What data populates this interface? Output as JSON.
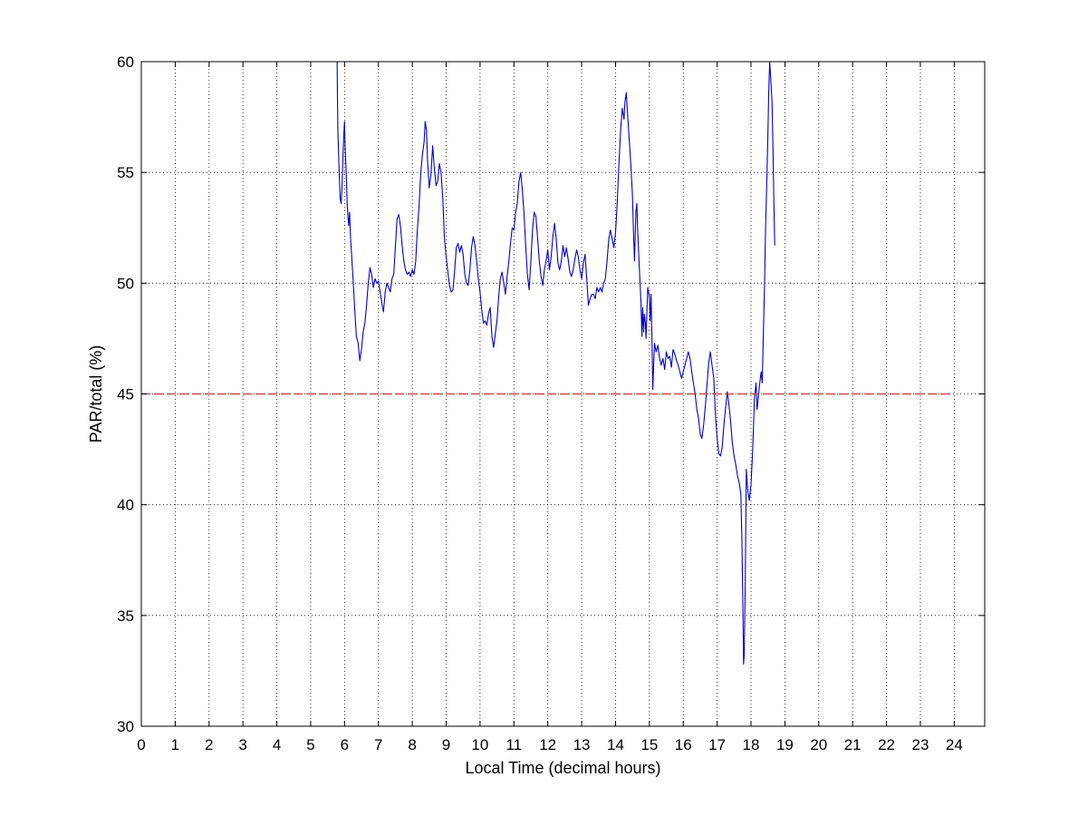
{
  "chart_data": {
    "type": "line",
    "title": "",
    "xlabel": "Local Time (decimal hours)",
    "ylabel": "PAR/total (%)",
    "xlim": [
      0,
      24.9
    ],
    "ylim": [
      30,
      60
    ],
    "x_ticks": [
      0,
      1,
      2,
      3,
      4,
      5,
      6,
      7,
      8,
      9,
      10,
      11,
      12,
      13,
      14,
      15,
      16,
      17,
      18,
      19,
      20,
      21,
      22,
      23,
      24
    ],
    "y_ticks": [
      30,
      35,
      40,
      45,
      50,
      55,
      60
    ],
    "grid": true,
    "grid_style": "dotted",
    "legend": "none",
    "series": [
      {
        "color": "#0000cc",
        "style": "solid",
        "points": [
          [
            5.78,
            60.0
          ],
          [
            5.8,
            57.0
          ],
          [
            5.83,
            55.5
          ],
          [
            5.87,
            53.8
          ],
          [
            5.9,
            53.6
          ],
          [
            5.93,
            54.5
          ],
          [
            5.95,
            55.6
          ],
          [
            5.98,
            56.8
          ],
          [
            6.0,
            57.3
          ],
          [
            6.02,
            56.0
          ],
          [
            6.05,
            55.0
          ],
          [
            6.08,
            53.5
          ],
          [
            6.12,
            52.6
          ],
          [
            6.15,
            53.2
          ],
          [
            6.18,
            51.9
          ],
          [
            6.2,
            51.5
          ],
          [
            6.25,
            50.2
          ],
          [
            6.3,
            48.8
          ],
          [
            6.35,
            47.6
          ],
          [
            6.4,
            47.3
          ],
          [
            6.45,
            46.5
          ],
          [
            6.5,
            47.0
          ],
          [
            6.55,
            47.8
          ],
          [
            6.6,
            48.2
          ],
          [
            6.65,
            49.0
          ],
          [
            6.7,
            50.0
          ],
          [
            6.75,
            50.7
          ],
          [
            6.8,
            50.4
          ],
          [
            6.85,
            49.8
          ],
          [
            6.9,
            50.2
          ],
          [
            6.95,
            50.0
          ],
          [
            7.0,
            50.1
          ],
          [
            7.05,
            49.6
          ],
          [
            7.1,
            49.1
          ],
          [
            7.15,
            48.7
          ],
          [
            7.2,
            49.6
          ],
          [
            7.25,
            50.0
          ],
          [
            7.3,
            49.8
          ],
          [
            7.35,
            49.6
          ],
          [
            7.4,
            50.2
          ],
          [
            7.45,
            50.4
          ],
          [
            7.5,
            51.6
          ],
          [
            7.55,
            52.9
          ],
          [
            7.6,
            53.1
          ],
          [
            7.65,
            52.6
          ],
          [
            7.7,
            51.7
          ],
          [
            7.75,
            51.0
          ],
          [
            7.8,
            50.6
          ],
          [
            7.85,
            50.4
          ],
          [
            7.9,
            50.5
          ],
          [
            7.95,
            50.3
          ],
          [
            8.0,
            50.6
          ],
          [
            8.05,
            50.4
          ],
          [
            8.1,
            51.0
          ],
          [
            8.15,
            52.4
          ],
          [
            8.2,
            53.5
          ],
          [
            8.25,
            55.0
          ],
          [
            8.3,
            55.8
          ],
          [
            8.35,
            56.4
          ],
          [
            8.38,
            57.3
          ],
          [
            8.42,
            56.9
          ],
          [
            8.45,
            55.6
          ],
          [
            8.5,
            54.3
          ],
          [
            8.55,
            54.9
          ],
          [
            8.6,
            56.2
          ],
          [
            8.65,
            55.2
          ],
          [
            8.7,
            54.4
          ],
          [
            8.75,
            54.6
          ],
          [
            8.8,
            55.4
          ],
          [
            8.85,
            55.0
          ],
          [
            8.9,
            53.8
          ],
          [
            8.95,
            52.0
          ],
          [
            9.0,
            51.2
          ],
          [
            9.05,
            50.5
          ],
          [
            9.1,
            49.9
          ],
          [
            9.15,
            49.6
          ],
          [
            9.2,
            49.7
          ],
          [
            9.25,
            50.6
          ],
          [
            9.3,
            51.6
          ],
          [
            9.35,
            51.8
          ],
          [
            9.4,
            51.4
          ],
          [
            9.45,
            51.7
          ],
          [
            9.5,
            51.3
          ],
          [
            9.55,
            50.4
          ],
          [
            9.6,
            50.0
          ],
          [
            9.65,
            49.9
          ],
          [
            9.7,
            50.6
          ],
          [
            9.75,
            51.6
          ],
          [
            9.8,
            52.1
          ],
          [
            9.85,
            51.7
          ],
          [
            9.9,
            51.0
          ],
          [
            9.95,
            50.2
          ],
          [
            10.0,
            49.6
          ],
          [
            10.05,
            48.8
          ],
          [
            10.1,
            48.2
          ],
          [
            10.15,
            48.3
          ],
          [
            10.2,
            48.1
          ],
          [
            10.25,
            48.6
          ],
          [
            10.3,
            48.9
          ],
          [
            10.35,
            47.6
          ],
          [
            10.4,
            47.1
          ],
          [
            10.45,
            47.7
          ],
          [
            10.5,
            48.3
          ],
          [
            10.55,
            49.4
          ],
          [
            10.6,
            50.2
          ],
          [
            10.65,
            50.5
          ],
          [
            10.7,
            50.0
          ],
          [
            10.75,
            49.5
          ],
          [
            10.8,
            50.3
          ],
          [
            10.85,
            51.0
          ],
          [
            10.9,
            51.8
          ],
          [
            10.95,
            52.5
          ],
          [
            11.0,
            52.4
          ],
          [
            11.05,
            53.2
          ],
          [
            11.1,
            53.6
          ],
          [
            11.15,
            54.6
          ],
          [
            11.2,
            55.0
          ],
          [
            11.25,
            54.2
          ],
          [
            11.3,
            53.1
          ],
          [
            11.35,
            51.6
          ],
          [
            11.4,
            50.4
          ],
          [
            11.45,
            49.7
          ],
          [
            11.5,
            51.0
          ],
          [
            11.55,
            52.4
          ],
          [
            11.6,
            53.2
          ],
          [
            11.65,
            53.0
          ],
          [
            11.7,
            52.0
          ],
          [
            11.75,
            51.0
          ],
          [
            11.8,
            50.3
          ],
          [
            11.85,
            49.9
          ],
          [
            11.9,
            50.6
          ],
          [
            11.95,
            51.0
          ],
          [
            12.0,
            51.5
          ],
          [
            12.05,
            50.6
          ],
          [
            12.1,
            51.2
          ],
          [
            12.15,
            52.1
          ],
          [
            12.2,
            52.7
          ],
          [
            12.25,
            52.0
          ],
          [
            12.3,
            50.9
          ],
          [
            12.35,
            50.6
          ],
          [
            12.4,
            51.0
          ],
          [
            12.45,
            51.7
          ],
          [
            12.5,
            51.2
          ],
          [
            12.55,
            51.6
          ],
          [
            12.6,
            51.1
          ],
          [
            12.65,
            50.5
          ],
          [
            12.7,
            50.3
          ],
          [
            12.75,
            50.6
          ],
          [
            12.8,
            51.1
          ],
          [
            12.85,
            51.5
          ],
          [
            12.9,
            51.2
          ],
          [
            12.95,
            50.6
          ],
          [
            13.0,
            50.2
          ],
          [
            13.05,
            50.9
          ],
          [
            13.1,
            51.3
          ],
          [
            13.15,
            50.2
          ],
          [
            13.2,
            49.0
          ],
          [
            13.25,
            49.3
          ],
          [
            13.3,
            49.5
          ],
          [
            13.35,
            49.5
          ],
          [
            13.4,
            49.3
          ],
          [
            13.45,
            49.8
          ],
          [
            13.5,
            49.6
          ],
          [
            13.55,
            49.8
          ],
          [
            13.6,
            49.6
          ],
          [
            13.65,
            50.0
          ],
          [
            13.7,
            50.2
          ],
          [
            13.75,
            51.0
          ],
          [
            13.8,
            52.0
          ],
          [
            13.85,
            52.4
          ],
          [
            13.9,
            52.0
          ],
          [
            13.95,
            51.6
          ],
          [
            14.0,
            52.3
          ],
          [
            14.05,
            53.6
          ],
          [
            14.1,
            55.4
          ],
          [
            14.15,
            56.9
          ],
          [
            14.2,
            57.9
          ],
          [
            14.25,
            57.4
          ],
          [
            14.28,
            58.2
          ],
          [
            14.32,
            58.6
          ],
          [
            14.35,
            57.8
          ],
          [
            14.4,
            56.6
          ],
          [
            14.45,
            55.4
          ],
          [
            14.5,
            54.0
          ],
          [
            14.53,
            52.3
          ],
          [
            14.56,
            51.0
          ],
          [
            14.6,
            53.2
          ],
          [
            14.63,
            53.6
          ],
          [
            14.65,
            52.5
          ],
          [
            14.7,
            50.8
          ],
          [
            14.75,
            49.2
          ],
          [
            14.78,
            47.6
          ],
          [
            14.8,
            48.9
          ],
          [
            14.83,
            47.8
          ],
          [
            14.85,
            48.6
          ],
          [
            14.88,
            48.2
          ],
          [
            14.9,
            47.5
          ],
          [
            14.95,
            49.8
          ],
          [
            15.0,
            49.4
          ],
          [
            15.02,
            48.3
          ],
          [
            15.05,
            49.5
          ],
          [
            15.08,
            47.2
          ],
          [
            15.1,
            45.2
          ],
          [
            15.13,
            46.5
          ],
          [
            15.15,
            47.3
          ],
          [
            15.2,
            46.9
          ],
          [
            15.25,
            47.2
          ],
          [
            15.3,
            46.6
          ],
          [
            15.35,
            46.3
          ],
          [
            15.4,
            46.6
          ],
          [
            15.45,
            46.1
          ],
          [
            15.5,
            46.9
          ],
          [
            15.55,
            46.6
          ],
          [
            15.6,
            46.7
          ],
          [
            15.65,
            46.2
          ],
          [
            15.7,
            47.0
          ],
          [
            15.75,
            46.8
          ],
          [
            15.8,
            46.5
          ],
          [
            15.85,
            46.3
          ],
          [
            15.9,
            46.0
          ],
          [
            15.95,
            45.7
          ],
          [
            16.0,
            46.0
          ],
          [
            16.05,
            46.3
          ],
          [
            16.1,
            46.6
          ],
          [
            16.15,
            46.9
          ],
          [
            16.2,
            46.6
          ],
          [
            16.25,
            46.0
          ],
          [
            16.3,
            45.5
          ],
          [
            16.35,
            45.0
          ],
          [
            16.4,
            44.3
          ],
          [
            16.45,
            43.9
          ],
          [
            16.5,
            43.2
          ],
          [
            16.55,
            43.0
          ],
          [
            16.6,
            43.6
          ],
          [
            16.65,
            44.4
          ],
          [
            16.7,
            45.4
          ],
          [
            16.75,
            46.4
          ],
          [
            16.8,
            46.9
          ],
          [
            16.85,
            46.3
          ],
          [
            16.9,
            45.7
          ],
          [
            16.95,
            44.0
          ],
          [
            17.0,
            43.0
          ],
          [
            17.05,
            42.3
          ],
          [
            17.1,
            42.2
          ],
          [
            17.15,
            42.6
          ],
          [
            17.2,
            43.6
          ],
          [
            17.25,
            44.4
          ],
          [
            17.3,
            45.1
          ],
          [
            17.35,
            44.5
          ],
          [
            17.4,
            43.7
          ],
          [
            17.45,
            42.8
          ],
          [
            17.5,
            42.2
          ],
          [
            17.55,
            41.8
          ],
          [
            17.6,
            41.3
          ],
          [
            17.65,
            41.0
          ],
          [
            17.7,
            40.5
          ],
          [
            17.73,
            38.5
          ],
          [
            17.76,
            35.5
          ],
          [
            17.78,
            32.8
          ],
          [
            17.8,
            33.2
          ],
          [
            17.83,
            36.5
          ],
          [
            17.86,
            41.6
          ],
          [
            17.9,
            40.7
          ],
          [
            17.95,
            40.2
          ],
          [
            18.0,
            40.9
          ],
          [
            18.05,
            42.5
          ],
          [
            18.1,
            44.8
          ],
          [
            18.15,
            45.5
          ],
          [
            18.18,
            44.3
          ],
          [
            18.2,
            44.6
          ],
          [
            18.25,
            45.4
          ],
          [
            18.3,
            46.0
          ],
          [
            18.33,
            45.5
          ],
          [
            18.36,
            47.5
          ],
          [
            18.4,
            50.0
          ],
          [
            18.43,
            52.5
          ],
          [
            18.46,
            54.2
          ],
          [
            18.5,
            56.8
          ],
          [
            18.52,
            58.5
          ],
          [
            18.55,
            60.0
          ],
          [
            18.58,
            59.3
          ],
          [
            18.62,
            58.2
          ],
          [
            18.65,
            56.0
          ],
          [
            18.67,
            54.0
          ],
          [
            18.7,
            51.7
          ]
        ]
      },
      {
        "color": "#cc3333",
        "style": "dashed",
        "points": [
          [
            0,
            45
          ],
          [
            24,
            45
          ]
        ]
      }
    ]
  }
}
